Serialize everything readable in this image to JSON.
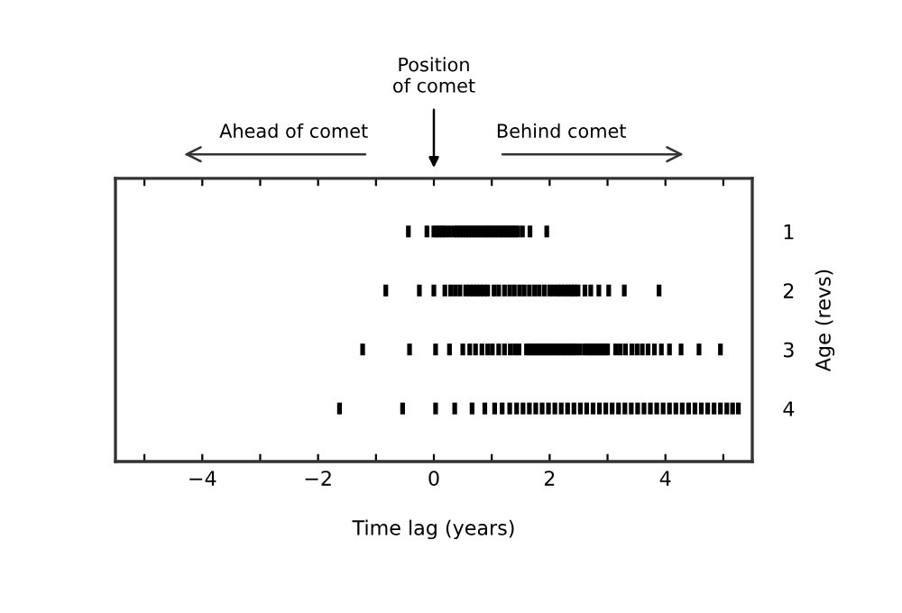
{
  "chart_data": {
    "type": "scatter",
    "xlabel": "Time lag (years)",
    "ylabel": "Age (revs)",
    "annotations": [
      {
        "text": "Position\nof comet",
        "x": 0
      },
      "Ahead of comet",
      "Behind comet"
    ],
    "xlim": [
      -5.5,
      5.5
    ],
    "xticks": [
      {
        "value": -5,
        "label": null
      },
      -4,
      {
        "value": -3,
        "label": null
      },
      -2,
      {
        "value": -1,
        "label": null
      },
      0,
      {
        "value": 1,
        "label": null
      },
      2,
      {
        "value": 3,
        "label": null
      },
      4,
      {
        "value": 5,
        "label": null
      }
    ],
    "ylim": [
      4.9,
      0.1
    ],
    "yticks": [
      1,
      2,
      3,
      4
    ],
    "grid": false,
    "legend": false,
    "series": [
      {
        "color": "#000000",
        "x": [
          -0.44,
          -0.12,
          0.0,
          0.05,
          0.1,
          0.15,
          0.2,
          0.27,
          0.35,
          0.4,
          0.45,
          0.5,
          0.55,
          0.6,
          0.65,
          0.7,
          0.75,
          0.8,
          0.85,
          0.9,
          0.95,
          1.0,
          1.05,
          1.1,
          1.15,
          1.2,
          1.25,
          1.3,
          1.35,
          1.4,
          1.45,
          1.53,
          1.66,
          1.95
        ],
        "values": [
          1,
          1,
          1,
          1,
          1,
          1,
          1,
          1,
          1,
          1,
          1,
          1,
          1,
          1,
          1,
          1,
          1,
          1,
          1,
          1,
          1,
          1,
          1,
          1,
          1,
          1,
          1,
          1,
          1,
          1,
          1,
          1,
          1,
          1
        ]
      },
      {
        "color": "#000000",
        "x": [
          -0.83,
          -0.25,
          0.0,
          0.19,
          0.29,
          0.37,
          0.45,
          0.55,
          0.62,
          0.68,
          0.74,
          0.8,
          0.86,
          0.93,
          1.04,
          1.12,
          1.22,
          1.31,
          1.39,
          1.48,
          1.56,
          1.65,
          1.74,
          1.82,
          1.91,
          2.0,
          2.07,
          2.14,
          2.2,
          2.26,
          2.32,
          2.38,
          2.43,
          2.49,
          2.61,
          2.71,
          2.85,
          3.02,
          3.29,
          3.89
        ],
        "values": [
          2,
          2,
          2,
          2,
          2,
          2,
          2,
          2,
          2,
          2,
          2,
          2,
          2,
          2,
          2,
          2,
          2,
          2,
          2,
          2,
          2,
          2,
          2,
          2,
          2,
          2,
          2,
          2,
          2,
          2,
          2,
          2,
          2,
          2,
          2,
          2,
          2,
          2,
          2,
          2
        ]
      },
      {
        "color": "#000000",
        "x": [
          -1.23,
          -0.42,
          0.03,
          0.27,
          0.5,
          0.62,
          0.72,
          0.83,
          0.93,
          1.01,
          1.12,
          1.22,
          1.32,
          1.4,
          1.47,
          1.6,
          1.65,
          1.7,
          1.75,
          1.8,
          1.85,
          1.9,
          1.95,
          2.0,
          2.05,
          2.1,
          2.15,
          2.2,
          2.25,
          2.3,
          2.35,
          2.4,
          2.45,
          2.52,
          2.6,
          2.65,
          2.7,
          2.75,
          2.8,
          2.85,
          2.9,
          2.95,
          3.0,
          3.14,
          3.22,
          3.31,
          3.42,
          3.51,
          3.6,
          3.7,
          3.81,
          3.93,
          4.07,
          4.27,
          4.58,
          4.95
        ],
        "values": [
          3,
          3,
          3,
          3,
          3,
          3,
          3,
          3,
          3,
          3,
          3,
          3,
          3,
          3,
          3,
          3,
          3,
          3,
          3,
          3,
          3,
          3,
          3,
          3,
          3,
          3,
          3,
          3,
          3,
          3,
          3,
          3,
          3,
          3,
          3,
          3,
          3,
          3,
          3,
          3,
          3,
          3,
          3,
          3,
          3,
          3,
          3,
          3,
          3,
          3,
          3,
          3,
          3,
          3,
          3,
          3
        ]
      },
      {
        "color": "#000000",
        "x": [
          -1.63,
          -0.54,
          0.03,
          0.36,
          0.66,
          0.88,
          1.05,
          1.18,
          1.31,
          1.43,
          1.54,
          1.65,
          1.76,
          1.87,
          1.98,
          2.09,
          2.2,
          2.31,
          2.42,
          2.53,
          2.64,
          2.75,
          2.86,
          2.97,
          3.08,
          3.19,
          3.3,
          3.41,
          3.52,
          3.63,
          3.74,
          3.85,
          3.96,
          4.07,
          4.18,
          4.29,
          4.4,
          4.51,
          4.62,
          4.73,
          4.84,
          4.95,
          5.06,
          5.16,
          5.26
        ],
        "values": [
          4,
          4,
          4,
          4,
          4,
          4,
          4,
          4,
          4,
          4,
          4,
          4,
          4,
          4,
          4,
          4,
          4,
          4,
          4,
          4,
          4,
          4,
          4,
          4,
          4,
          4,
          4,
          4,
          4,
          4,
          4,
          4,
          4,
          4,
          4,
          4,
          4,
          4,
          4,
          4,
          4,
          4,
          4,
          4,
          4
        ]
      }
    ]
  }
}
